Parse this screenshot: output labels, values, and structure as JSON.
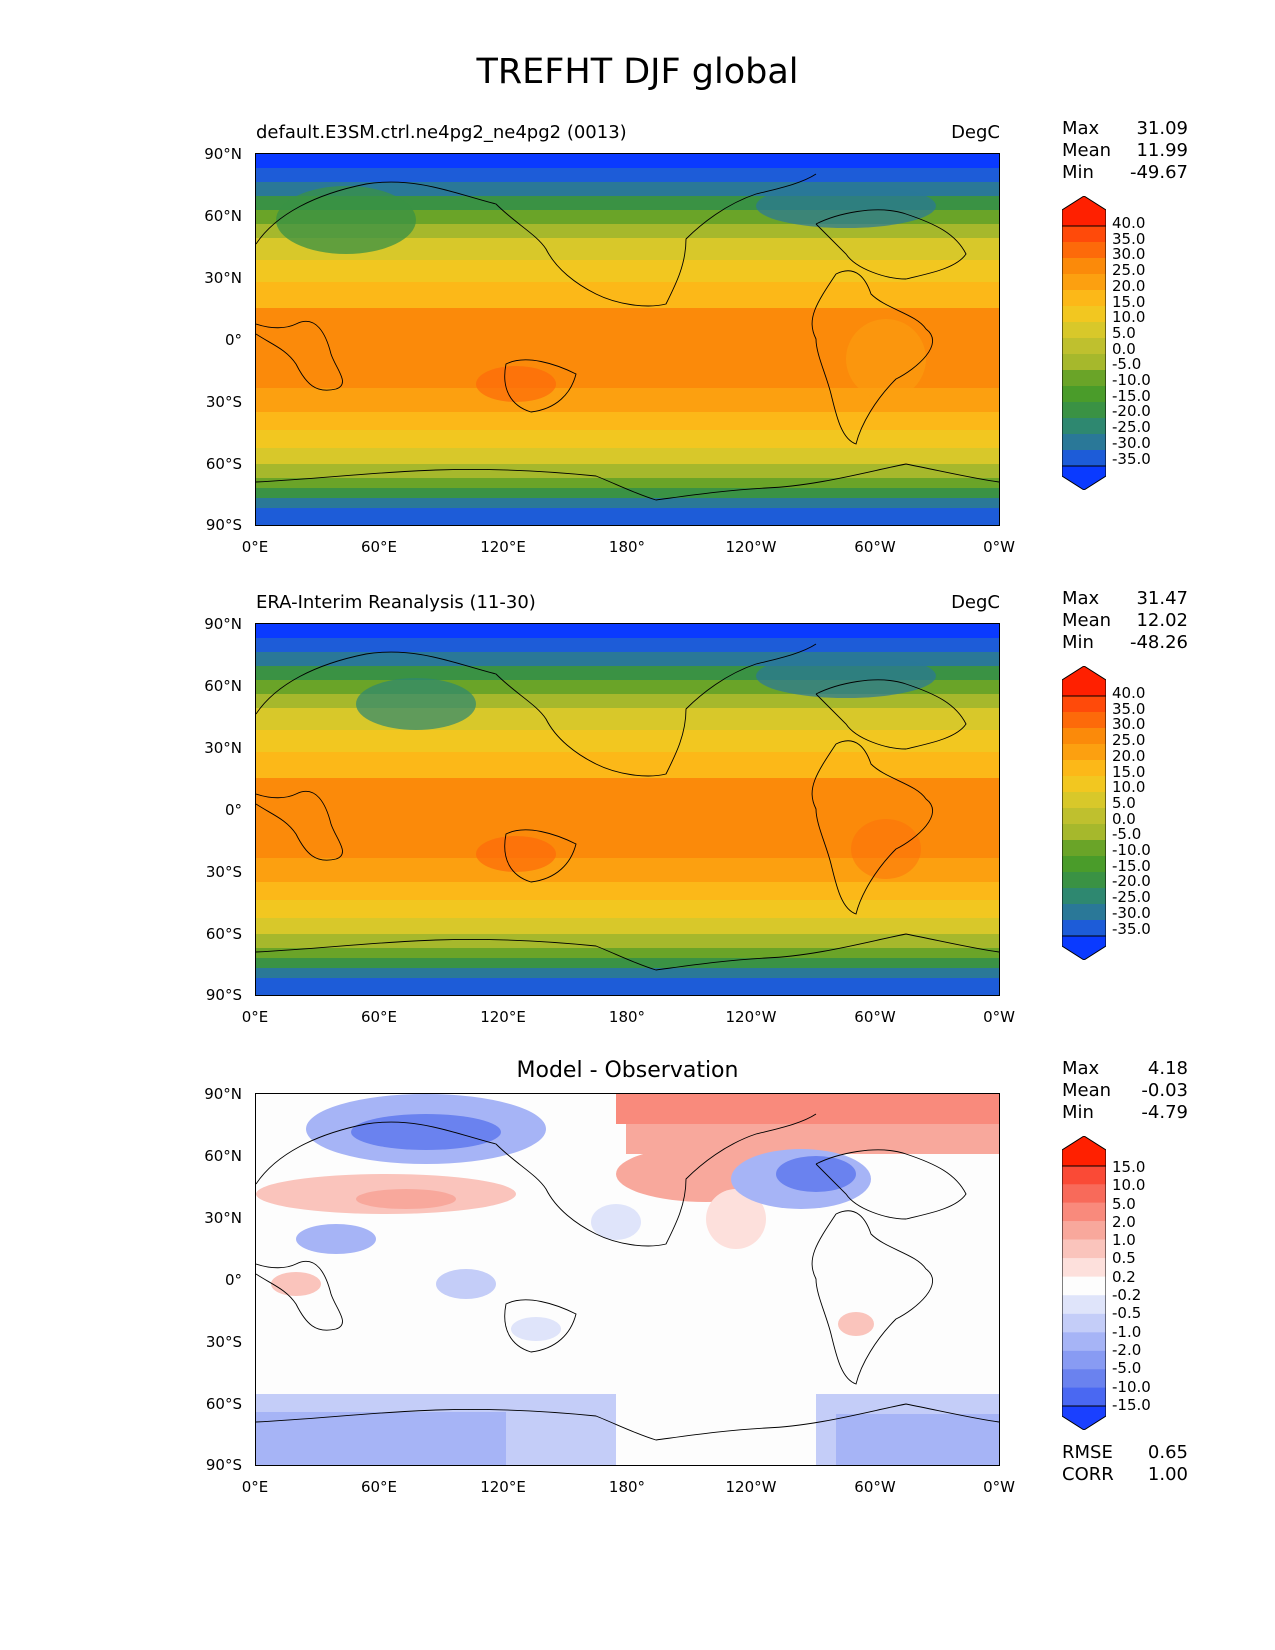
{
  "figure_title": "TREFHT DJF global",
  "panels": [
    {
      "title": "default.E3SM.ctrl.ne4pg2_ne4pg2 (0013)",
      "units": "DegC",
      "stats": [
        {
          "label": "Max",
          "value": "31.09"
        },
        {
          "label": "Mean",
          "value": "11.99"
        },
        {
          "label": "Min",
          "value": "-49.67"
        }
      ]
    },
    {
      "title": "ERA-Interim Reanalysis (11-30)",
      "units": "DegC",
      "stats": [
        {
          "label": "Max",
          "value": "31.47"
        },
        {
          "label": "Mean",
          "value": "12.02"
        },
        {
          "label": "Min",
          "value": "-48.26"
        }
      ]
    },
    {
      "title": "Model - Observation",
      "units": "",
      "stats": [
        {
          "label": "Max",
          "value": "4.18"
        },
        {
          "label": "Mean",
          "value": "-0.03"
        },
        {
          "label": "Min",
          "value": "-4.79"
        }
      ],
      "extra_stats": [
        {
          "label": "RMSE",
          "value": "0.65"
        },
        {
          "label": "CORR",
          "value": "1.00"
        }
      ]
    }
  ],
  "lat_ticks": [
    "90°N",
    "60°N",
    "30°N",
    "0°",
    "30°S",
    "60°S",
    "90°S"
  ],
  "lon_ticks": [
    "0°E",
    "60°E",
    "120°E",
    "180°",
    "120°W",
    "60°W",
    "0°W"
  ],
  "colorbar_levels": [
    "40.0",
    "35.0",
    "30.0",
    "25.0",
    "20.0",
    "15.0",
    "10.0",
    "5.0",
    "0.0",
    "-5.0",
    "-10.0",
    "-15.0",
    "-20.0",
    "-25.0",
    "-30.0",
    "-35.0"
  ],
  "diff_colorbar_levels": [
    "15.0",
    "10.0",
    "5.0",
    "2.0",
    "1.0",
    "0.5",
    "0.2",
    "-0.2",
    "-0.5",
    "-1.0",
    "-2.0",
    "-5.0",
    "-10.0",
    "-15.0"
  ],
  "colors": {
    "field_top_to_bottom": [
      "#ff2000",
      "#ff4a0a",
      "#fd6a0a",
      "#fb8a0a",
      "#fca010",
      "#fcb818",
      "#f2c720",
      "#d8c82a",
      "#bfc02e",
      "#a6b82c",
      "#88ae2a",
      "#6aa428",
      "#4a9c2a",
      "#3a9244",
      "#2e8870",
      "#2a7898",
      "#1d5cd8",
      "#0a3aff"
    ],
    "diff_top_to_bottom": [
      "#ff2000",
      "#fa4a36",
      "#f86a5a",
      "#f98a7c",
      "#f8a89c",
      "#fac4bc",
      "#fde0dc",
      "#fdfdfd",
      "#dfe4fa",
      "#c4cdf8",
      "#a6b4f6",
      "#889bf3",
      "#6a82ef",
      "#4a68f2",
      "#1a40ff"
    ]
  },
  "chart_data": [
    {
      "type": "heatmap",
      "title": "default.E3SM.ctrl.ne4pg2_ne4pg2 (0013)",
      "units": "DegC",
      "x_range": [
        "0°E",
        "0°W"
      ],
      "y_range": [
        -90,
        90
      ],
      "levels": [
        -35,
        -30,
        -25,
        -20,
        -15,
        -10,
        -5,
        0,
        5,
        10,
        15,
        20,
        25,
        30,
        35,
        40
      ],
      "zonal_profile": {
        "lat": [
          90,
          80,
          70,
          60,
          50,
          40,
          30,
          20,
          10,
          0,
          -10,
          -20,
          -30,
          -40,
          -50,
          -60,
          -70,
          -80,
          -90
        ],
        "value": [
          -30,
          -22,
          -12,
          -6,
          -1,
          8,
          16,
          21,
          24,
          25,
          25,
          24,
          19,
          12,
          6,
          1,
          -8,
          -18,
          -28
        ]
      },
      "max": 31.09,
      "mean": 11.99,
      "min": -49.67
    },
    {
      "type": "heatmap",
      "title": "ERA-Interim Reanalysis (11-30)",
      "units": "DegC",
      "x_range": [
        "0°E",
        "0°W"
      ],
      "y_range": [
        -90,
        90
      ],
      "levels": [
        -35,
        -30,
        -25,
        -20,
        -15,
        -10,
        -5,
        0,
        5,
        10,
        15,
        20,
        25,
        30,
        35,
        40
      ],
      "zonal_profile": {
        "lat": [
          90,
          80,
          70,
          60,
          50,
          40,
          30,
          20,
          10,
          0,
          -10,
          -20,
          -30,
          -40,
          -50,
          -60,
          -70,
          -80,
          -90
        ],
        "value": [
          -31,
          -23,
          -12,
          -6,
          -1,
          8,
          16,
          21,
          24,
          25,
          25,
          24,
          19,
          12,
          6,
          1,
          -8,
          -19,
          -29
        ]
      },
      "max": 31.47,
      "mean": 12.02,
      "min": -48.26
    },
    {
      "type": "heatmap",
      "title": "Model - Observation",
      "x_range": [
        "0°E",
        "0°W"
      ],
      "y_range": [
        -90,
        90
      ],
      "levels": [
        -15,
        -10,
        -5,
        -2,
        -1,
        -0.5,
        -0.2,
        0.2,
        0.5,
        1,
        2,
        5,
        10,
        15
      ],
      "max": 4.18,
      "mean": -0.03,
      "min": -4.79,
      "rmse": 0.65,
      "corr": 1.0
    }
  ]
}
